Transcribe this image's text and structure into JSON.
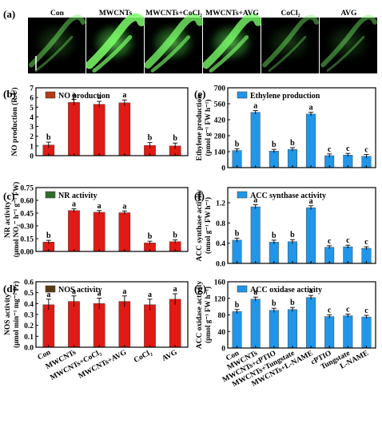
{
  "fluorescence_panel": {
    "label": "(a)",
    "columns": [
      "Con",
      "MWCNTs",
      "MWCNTs+CoCl₂",
      "MWCNTs+AVG",
      "CoCl₂",
      "AVG"
    ],
    "brightness": [
      0.35,
      1.0,
      0.85,
      0.9,
      0.3,
      0.3
    ],
    "glow_color": "#7CFF6A",
    "background_color": "#000000"
  },
  "chart_data": [
    {
      "type": "bar",
      "panel_label": "(b)",
      "legend": "NO production",
      "ylabel": "NO production (R.U)",
      "ylim": [
        0,
        7
      ],
      "yticks": [
        0,
        1,
        2,
        3,
        4,
        5,
        6,
        7
      ],
      "categories": [
        "Con",
        "MWCNTs",
        "MWCNTs+CoCl₂",
        "MWCNTs+AVG",
        "CoCl₂",
        "AVG"
      ],
      "values": [
        1.1,
        5.5,
        5.3,
        5.45,
        1.05,
        1.0
      ],
      "errors": [
        0.3,
        0.3,
        0.3,
        0.3,
        0.3,
        0.3
      ],
      "letters": [
        "b",
        "a",
        "a",
        "a",
        "b",
        "b"
      ],
      "bar_color": "#e01a14",
      "legend_color": "#b23a14",
      "show_xticklabels": false
    },
    {
      "type": "bar",
      "panel_label": "(c)",
      "legend": "NR activity",
      "ylabel": "NR activity",
      "ylabel_line2": "(μmol NO₂⁻ h⁻¹ g⁻¹ FW)",
      "ylim": [
        0,
        0.75
      ],
      "yticks": [
        0,
        0.15,
        0.3,
        0.45,
        0.6,
        0.75
      ],
      "ytick_labels": [
        "0.00",
        "0.15",
        "0.30",
        "0.45",
        "0.60",
        "0.75"
      ],
      "categories": [
        "Con",
        "MWCNTs",
        "MWCNTs+CoCl₂",
        "MWCNTs+AVG",
        "CoCl₂",
        "AVG"
      ],
      "values": [
        0.11,
        0.48,
        0.46,
        0.455,
        0.1,
        0.115
      ],
      "errors": [
        0.02,
        0.02,
        0.02,
        0.02,
        0.02,
        0.02
      ],
      "letters": [
        "b",
        "a",
        "a",
        "a",
        "b",
        "b"
      ],
      "bar_color": "#e01a14",
      "legend_color": "#2f6e2a",
      "show_xticklabels": false
    },
    {
      "type": "bar",
      "panel_label": "(d)",
      "legend": "NOS activity",
      "ylabel": "NOS activity",
      "ylabel_line2": "(μmol min⁻¹ mg⁻¹ Pr)",
      "ylim": [
        0,
        0.6
      ],
      "yticks": [
        0,
        0.1,
        0.2,
        0.3,
        0.4,
        0.5,
        0.6
      ],
      "ytick_labels": [
        "0.0",
        "0.1",
        "0.2",
        "0.3",
        "0.4",
        "0.5",
        "0.6"
      ],
      "categories": [
        "Con",
        "MWCNTs",
        "MWCNTs+CoCl₂",
        "MWCNTs+AVG",
        "CoCl₂",
        "AVG"
      ],
      "values": [
        0.39,
        0.42,
        0.4,
        0.42,
        0.39,
        0.44
      ],
      "errors": [
        0.05,
        0.05,
        0.05,
        0.05,
        0.05,
        0.05
      ],
      "letters": [
        "a",
        "a",
        "a",
        "a",
        "a",
        "a"
      ],
      "bar_color": "#e01a14",
      "legend_color": "#5a3a14",
      "show_xticklabels": true
    },
    {
      "type": "bar",
      "panel_label": "(e)",
      "legend": "Ethylene production",
      "ylabel": "Ethylene production",
      "ylabel_line2": "(pmol g⁻¹ FW h⁻¹)",
      "ylim": [
        0,
        700
      ],
      "yticks": [
        0,
        140,
        280,
        420,
        560,
        700
      ],
      "categories": [
        "Con",
        "MWCNTs",
        "MWCNTs+cPTIO",
        "MWCNTs+Tungstate",
        "MWCNTs+L-NAME",
        "cPTIO",
        "Tungstate",
        "L-NAME"
      ],
      "values": [
        150,
        485,
        145,
        160,
        470,
        105,
        110,
        100
      ],
      "errors": [
        15,
        15,
        15,
        15,
        15,
        15,
        15,
        15
      ],
      "letters": [
        "b",
        "a",
        "b",
        "b",
        "a",
        "c",
        "c",
        "c"
      ],
      "bar_color": "#2196e8",
      "legend_color": "#2196e8",
      "show_xticklabels": false
    },
    {
      "type": "bar",
      "panel_label": "(f)",
      "legend": "ACC synthase activity",
      "ylabel": "ACC synthase activity",
      "ylabel_line2": "(nmol g⁻¹ FW h⁻¹)",
      "ylim": [
        0,
        1.5
      ],
      "yticks": [
        0,
        0.4,
        0.8,
        1.2
      ],
      "ytick_labels": [
        "0.0",
        "0.4",
        "0.8",
        "1.2"
      ],
      "categories": [
        "Con",
        "MWCNTs",
        "MWCNTs+cPTIO",
        "MWCNTs+Tungstate",
        "MWCNTs+L-NAME",
        "cPTIO",
        "Tungstate",
        "L-NAME"
      ],
      "values": [
        0.46,
        1.12,
        0.42,
        0.43,
        1.1,
        0.32,
        0.33,
        0.3
      ],
      "errors": [
        0.04,
        0.04,
        0.04,
        0.04,
        0.04,
        0.03,
        0.03,
        0.03
      ],
      "letters": [
        "b",
        "a",
        "b",
        "b",
        "a",
        "c",
        "c",
        "c"
      ],
      "bar_color": "#2196e8",
      "legend_color": "#2196e8",
      "show_xticklabels": false
    },
    {
      "type": "bar",
      "panel_label": "(g)",
      "legend": "ACC oxidase activity",
      "ylabel": "ACC oxidase activity",
      "ylabel_line2": "(pmol g⁻¹ FW h⁻¹)",
      "ylim": [
        0,
        160
      ],
      "yticks": [
        0,
        40,
        80,
        120,
        160
      ],
      "categories": [
        "Con",
        "MWCNTs",
        "MWCNTs+cPTIO",
        "MWCNTs+Tungstate",
        "MWCNTs+L-NAME",
        "cPTIO",
        "Tungstate",
        "L-NAME"
      ],
      "values": [
        88,
        118,
        91,
        93,
        122,
        76,
        78,
        75
      ],
      "errors": [
        5,
        5,
        5,
        5,
        5,
        4,
        4,
        4
      ],
      "letters": [
        "b",
        "a",
        "b",
        "b",
        "a",
        "c",
        "c",
        "c"
      ],
      "bar_color": "#2196e8",
      "legend_color": "#2196e8",
      "show_xticklabels": true
    }
  ]
}
